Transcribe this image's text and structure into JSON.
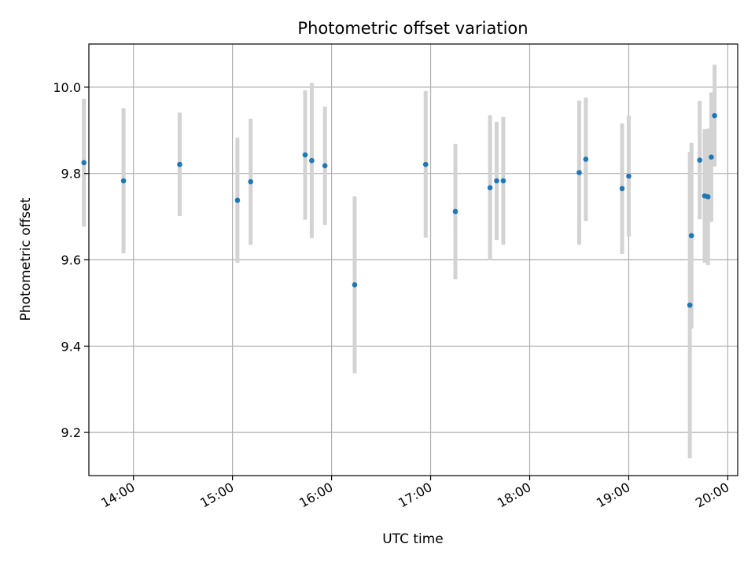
{
  "chart_data": {
    "type": "scatter",
    "title": "Photometric offset variation",
    "xlabel": "UTC time",
    "ylabel": "Photometric offset",
    "xlim": [
      "13:33",
      "20:06"
    ],
    "ylim": [
      9.1,
      10.1
    ],
    "grid": true,
    "x_ticks": [
      "14:00",
      "15:00",
      "16:00",
      "17:00",
      "18:00",
      "19:00",
      "20:00"
    ],
    "y_ticks": [
      9.2,
      9.4,
      9.6,
      9.8,
      10.0
    ],
    "y_tick_labels": [
      "9.2",
      "9.4",
      "9.6",
      "9.8",
      "10.0"
    ],
    "marker_color": "#1f77b4",
    "errorbar_color": "#d3d3d3",
    "points": [
      {
        "x": "13:30",
        "y": 9.825,
        "err": 0.148
      },
      {
        "x": "13:54",
        "y": 9.783,
        "err": 0.168
      },
      {
        "x": "14:28",
        "y": 9.821,
        "err": 0.12
      },
      {
        "x": "15:03",
        "y": 9.738,
        "err": 0.145
      },
      {
        "x": "15:11",
        "y": 9.781,
        "err": 0.146
      },
      {
        "x": "15:44",
        "y": 9.843,
        "err": 0.15
      },
      {
        "x": "15:48",
        "y": 9.83,
        "err": 0.18
      },
      {
        "x": "15:56",
        "y": 9.818,
        "err": 0.137
      },
      {
        "x": "16:14",
        "y": 9.542,
        "err": 0.205
      },
      {
        "x": "16:57",
        "y": 9.821,
        "err": 0.17
      },
      {
        "x": "17:15",
        "y": 9.712,
        "err": 0.157
      },
      {
        "x": "17:36",
        "y": 9.767,
        "err": 0.168
      },
      {
        "x": "17:40",
        "y": 9.783,
        "err": 0.137
      },
      {
        "x": "17:44",
        "y": 9.783,
        "err": 0.148
      },
      {
        "x": "18:30",
        "y": 9.802,
        "err": 0.167
      },
      {
        "x": "18:34",
        "y": 9.833,
        "err": 0.143
      },
      {
        "x": "18:56",
        "y": 9.765,
        "err": 0.151
      },
      {
        "x": "19:00",
        "y": 9.794,
        "err": 0.14
      },
      {
        "x": "19:37",
        "y": 9.495,
        "err": 0.355
      },
      {
        "x": "19:38",
        "y": 9.656,
        "err": 0.215
      },
      {
        "x": "19:43",
        "y": 9.831,
        "err": 0.137
      },
      {
        "x": "19:46",
        "y": 9.748,
        "err": 0.155
      },
      {
        "x": "19:48",
        "y": 9.746,
        "err": 0.158
      },
      {
        "x": "19:50",
        "y": 9.838,
        "err": 0.15
      },
      {
        "x": "19:52",
        "y": 9.934,
        "err": 0.118
      }
    ]
  }
}
